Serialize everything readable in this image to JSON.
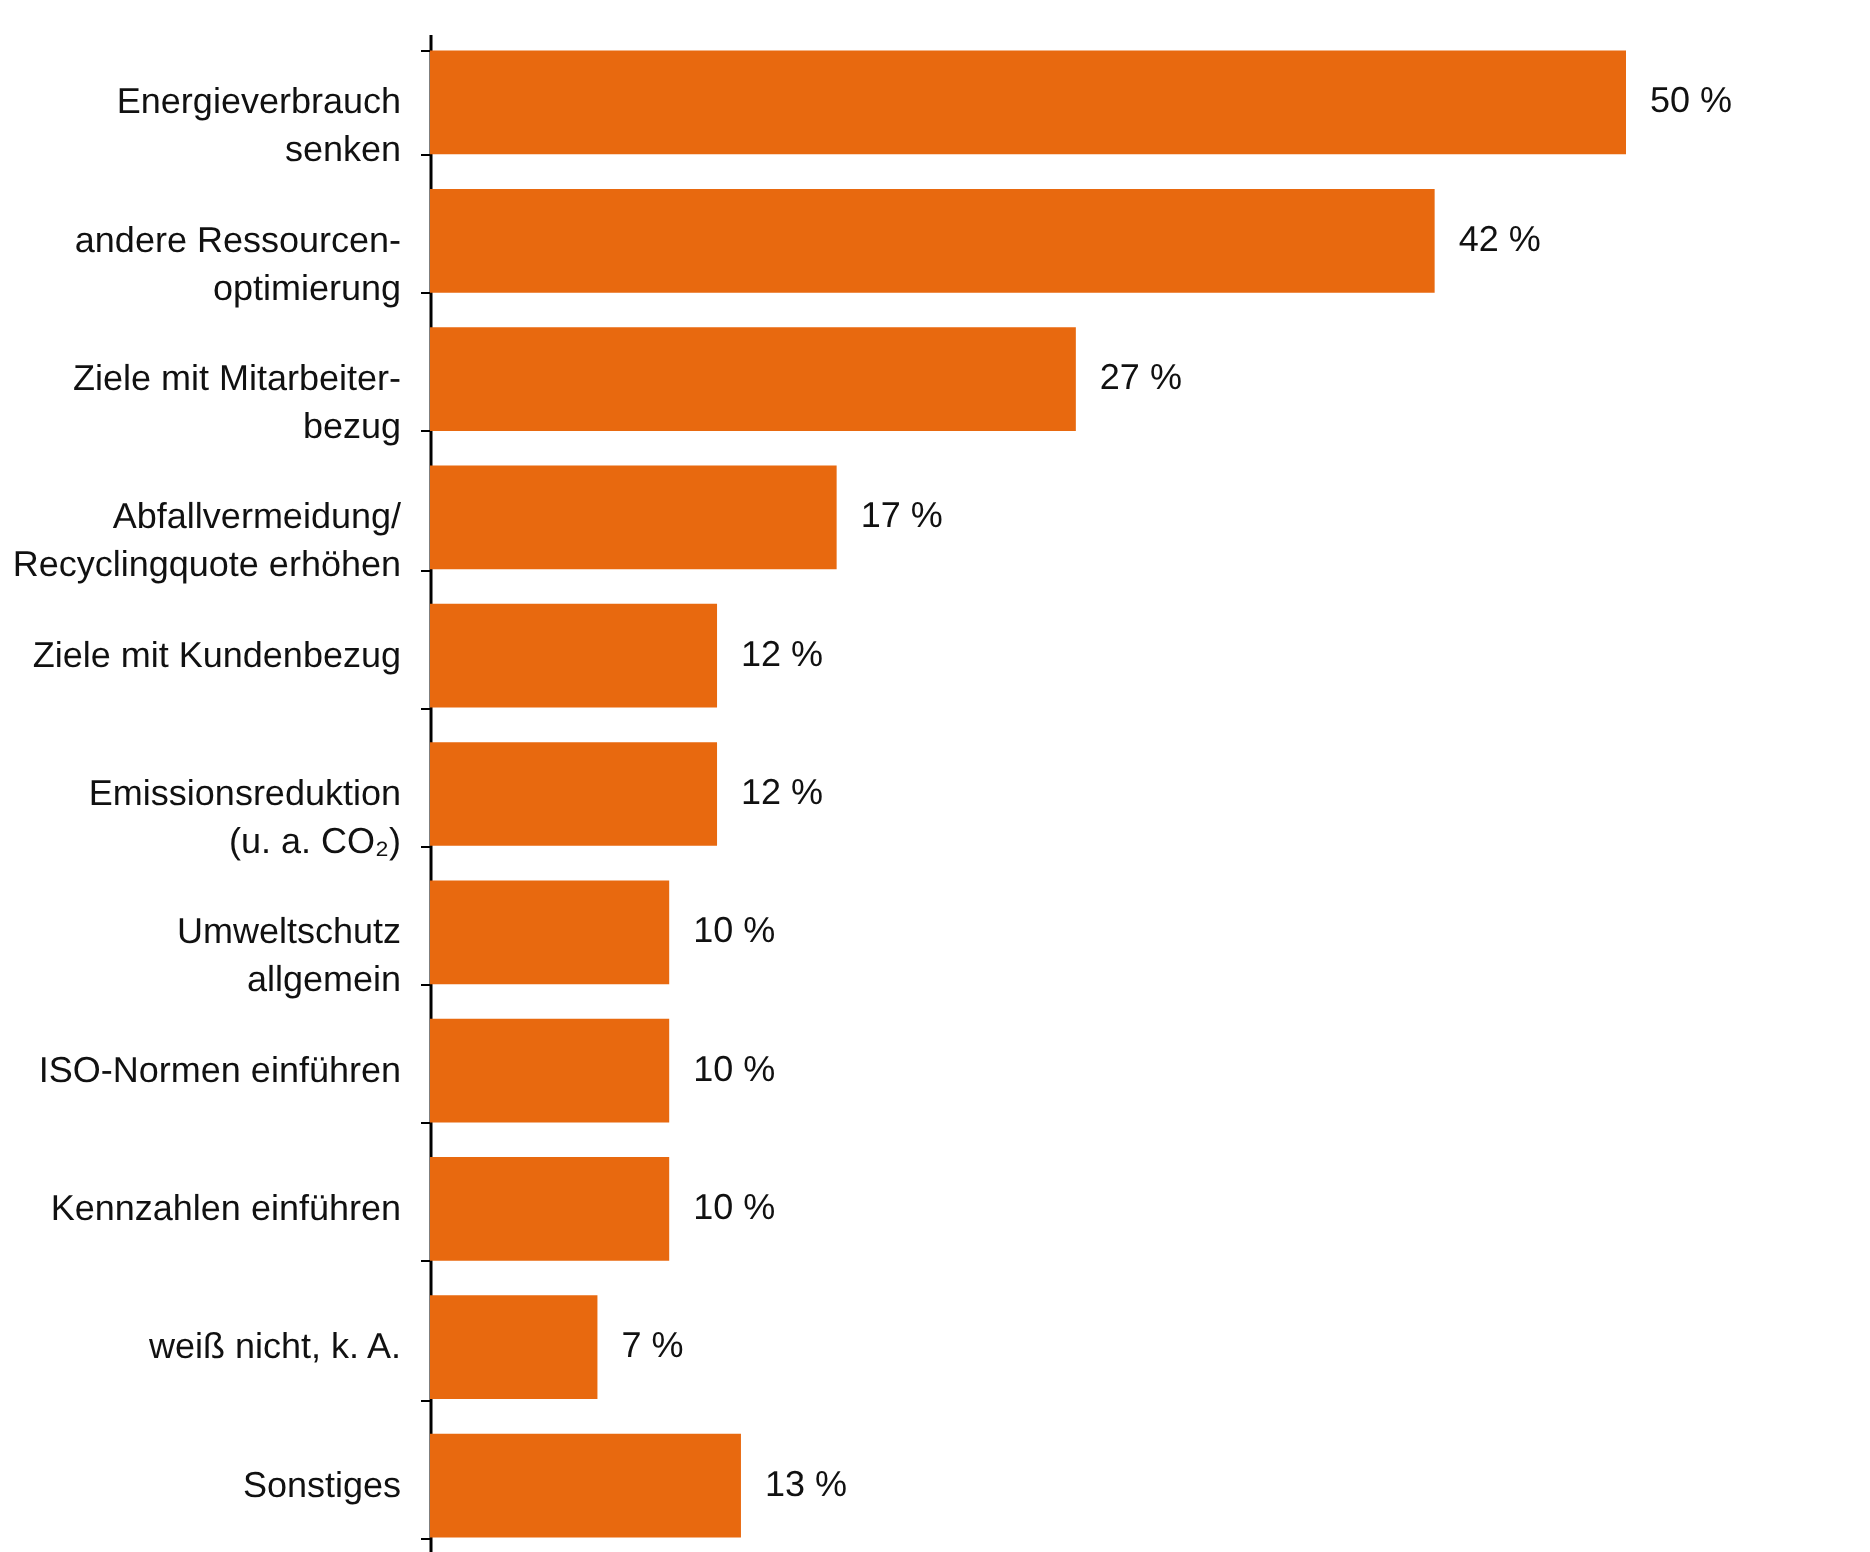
{
  "chart_data": {
    "type": "bar",
    "orientation": "horizontal",
    "categories": [
      "Energieverbrauch\nsenken",
      "andere Ressourcen-\noptimierung",
      "Ziele mit Mitarbeiter-\nbezug",
      "Abfallvermeidung/\nRecyclingquote erhöhen",
      "Ziele mit Kundenbezug",
      "Emissionsreduktion\n(u. a. CO₂)",
      "Umweltschutz\nallgemein",
      "ISO-Normen einführen",
      "Kennzahlen einführen",
      "weiß nicht, k. A.",
      "Sonstiges"
    ],
    "values": [
      50,
      42,
      27,
      17,
      12,
      12,
      10,
      10,
      10,
      7,
      13
    ],
    "value_labels": [
      "50 %",
      "42 %",
      "27 %",
      "17 %",
      "12 %",
      "12 %",
      "10 %",
      "10 %",
      "10 %",
      "7 %",
      "13 %"
    ],
    "color": "#e8690f",
    "grid": false
  }
}
